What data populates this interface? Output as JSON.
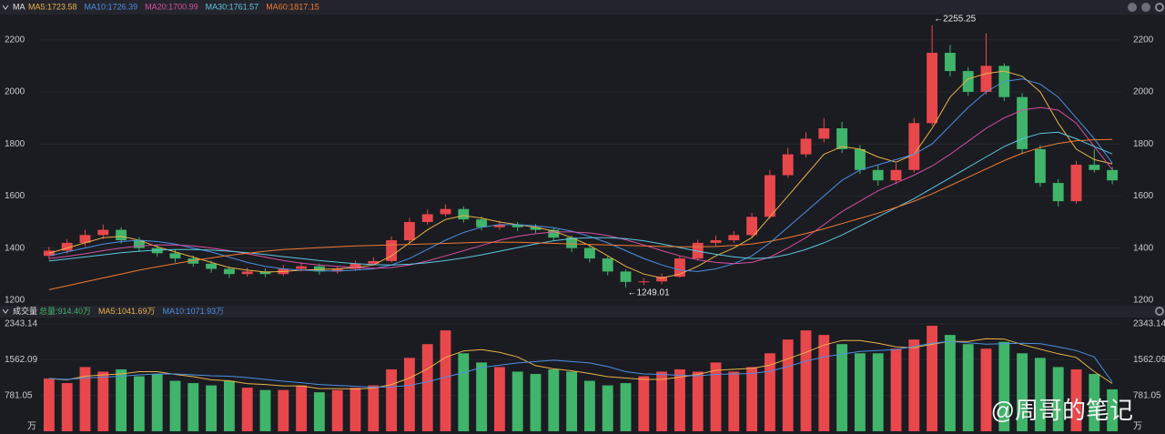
{
  "chart_data": [
    {
      "type": "candlestick",
      "title": "MA",
      "ylim": [
        1182,
        2290
      ],
      "yticks": [
        1200,
        1400,
        1600,
        1800,
        2000,
        2200
      ],
      "up_color": "#e8474c",
      "down_color": "#3fb46a",
      "candles": [
        [
          1370,
          1405,
          1355,
          1390
        ],
        [
          1390,
          1435,
          1378,
          1420
        ],
        [
          1420,
          1470,
          1405,
          1450
        ],
        [
          1450,
          1490,
          1435,
          1470
        ],
        [
          1470,
          1480,
          1418,
          1430
        ],
        [
          1430,
          1442,
          1385,
          1400
        ],
        [
          1400,
          1415,
          1368,
          1380
        ],
        [
          1380,
          1392,
          1345,
          1360
        ],
        [
          1360,
          1372,
          1328,
          1340
        ],
        [
          1340,
          1352,
          1305,
          1320
        ],
        [
          1320,
          1330,
          1285,
          1300
        ],
        [
          1300,
          1325,
          1290,
          1310
        ],
        [
          1310,
          1322,
          1288,
          1300
        ],
        [
          1300,
          1335,
          1292,
          1320
        ],
        [
          1320,
          1345,
          1310,
          1330
        ],
        [
          1330,
          1340,
          1298,
          1310
        ],
        [
          1310,
          1332,
          1302,
          1320
        ],
        [
          1320,
          1352,
          1312,
          1340
        ],
        [
          1340,
          1365,
          1332,
          1350
        ],
        [
          1350,
          1445,
          1345,
          1430
        ],
        [
          1430,
          1515,
          1422,
          1500
        ],
        [
          1500,
          1548,
          1490,
          1530
        ],
        [
          1530,
          1568,
          1520,
          1550
        ],
        [
          1550,
          1560,
          1498,
          1510
        ],
        [
          1510,
          1522,
          1468,
          1480
        ],
        [
          1480,
          1505,
          1470,
          1490
        ],
        [
          1490,
          1500,
          1465,
          1480
        ],
        [
          1480,
          1492,
          1458,
          1470
        ],
        [
          1470,
          1478,
          1428,
          1440
        ],
        [
          1440,
          1448,
          1385,
          1400
        ],
        [
          1400,
          1410,
          1345,
          1360
        ],
        [
          1360,
          1368,
          1295,
          1310
        ],
        [
          1310,
          1318,
          1249.01,
          1270
        ],
        [
          1270,
          1285,
          1258,
          1272
        ],
        [
          1272,
          1302,
          1262,
          1290
        ],
        [
          1290,
          1372,
          1285,
          1360
        ],
        [
          1360,
          1432,
          1352,
          1420
        ],
        [
          1420,
          1448,
          1408,
          1430
        ],
        [
          1430,
          1465,
          1420,
          1450
        ],
        [
          1450,
          1535,
          1442,
          1520
        ],
        [
          1520,
          1700,
          1512,
          1680
        ],
        [
          1680,
          1785,
          1670,
          1760
        ],
        [
          1760,
          1845,
          1748,
          1820
        ],
        [
          1820,
          1900,
          1805,
          1860
        ],
        [
          1860,
          1885,
          1765,
          1780
        ],
        [
          1780,
          1795,
          1685,
          1700
        ],
        [
          1700,
          1718,
          1640,
          1660
        ],
        [
          1660,
          1725,
          1645,
          1700
        ],
        [
          1700,
          1900,
          1690,
          1880
        ],
        [
          1880,
          2255.25,
          1870,
          2150
        ],
        [
          2150,
          2180,
          2060,
          2080
        ],
        [
          2080,
          2095,
          1985,
          2000
        ],
        [
          2000,
          2225,
          1990,
          2100
        ],
        [
          2100,
          2110,
          1965,
          1980
        ],
        [
          1980,
          1995,
          1760,
          1780
        ],
        [
          1780,
          1795,
          1635,
          1650
        ],
        [
          1650,
          1665,
          1560,
          1580
        ],
        [
          1580,
          1735,
          1570,
          1720
        ],
        [
          1720,
          1780,
          1690,
          1700
        ],
        [
          1700,
          1712,
          1645,
          1660
        ]
      ],
      "series": [
        {
          "name": "MA5:1723.58",
          "color": "#e9b24a",
          "values": [
            1380,
            1400,
            1420,
            1440,
            1445,
            1430,
            1405,
            1385,
            1365,
            1345,
            1325,
            1315,
            1308,
            1310,
            1315,
            1318,
            1320,
            1325,
            1335,
            1370,
            1420,
            1470,
            1510,
            1525,
            1515,
            1500,
            1490,
            1480,
            1465,
            1440,
            1410,
            1370,
            1330,
            1300,
            1285,
            1300,
            1330,
            1370,
            1400,
            1440,
            1520,
            1600,
            1680,
            1760,
            1790,
            1780,
            1750,
            1730,
            1760,
            1860,
            1980,
            2050,
            2070,
            2080,
            2060,
            2000,
            1880,
            1780,
            1740,
            1723.58
          ]
        },
        {
          "name": "MA10:1726.39",
          "color": "#4c8fe3",
          "values": [
            1370,
            1385,
            1400,
            1415,
            1425,
            1430,
            1425,
            1415,
            1400,
            1385,
            1365,
            1345,
            1330,
            1320,
            1315,
            1312,
            1312,
            1315,
            1320,
            1335,
            1360,
            1395,
            1430,
            1460,
            1480,
            1490,
            1490,
            1485,
            1478,
            1465,
            1445,
            1420,
            1390,
            1360,
            1335,
            1315,
            1310,
            1320,
            1340,
            1370,
            1420,
            1480,
            1540,
            1600,
            1660,
            1700,
            1720,
            1740,
            1760,
            1800,
            1870,
            1940,
            2000,
            2040,
            2050,
            2030,
            1980,
            1900,
            1820,
            1726.39
          ]
        },
        {
          "name": "MA20:1700.99",
          "color": "#d44fa3",
          "values": [
            1360,
            1368,
            1378,
            1390,
            1400,
            1408,
            1412,
            1412,
            1408,
            1400,
            1390,
            1378,
            1365,
            1352,
            1342,
            1335,
            1330,
            1325,
            1322,
            1325,
            1335,
            1350,
            1370,
            1390,
            1410,
            1430,
            1445,
            1455,
            1462,
            1462,
            1458,
            1448,
            1432,
            1412,
            1390,
            1370,
            1355,
            1345,
            1340,
            1345,
            1365,
            1400,
            1440,
            1490,
            1540,
            1580,
            1620,
            1650,
            1680,
            1715,
            1760,
            1810,
            1860,
            1900,
            1930,
            1940,
            1930,
            1880,
            1790,
            1700.99
          ]
        },
        {
          "name": "MA30:1761.57",
          "color": "#5cc6e0",
          "values": [
            1350,
            1358,
            1366,
            1374,
            1382,
            1388,
            1392,
            1394,
            1394,
            1392,
            1388,
            1382,
            1375,
            1367,
            1360,
            1352,
            1346,
            1340,
            1336,
            1335,
            1338,
            1344,
            1352,
            1362,
            1374,
            1388,
            1402,
            1416,
            1428,
            1436,
            1440,
            1440,
            1436,
            1428,
            1416,
            1402,
            1388,
            1376,
            1366,
            1360,
            1362,
            1375,
            1395,
            1420,
            1450,
            1485,
            1520,
            1555,
            1590,
            1630,
            1670,
            1710,
            1750,
            1790,
            1820,
            1840,
            1845,
            1820,
            1790,
            1761.57
          ]
        },
        {
          "name": "MA60:1817.15",
          "color": "#ee7a34",
          "values": [
            1240,
            1255,
            1270,
            1285,
            1300,
            1315,
            1328,
            1340,
            1352,
            1362,
            1372,
            1380,
            1388,
            1394,
            1398,
            1402,
            1405,
            1408,
            1410,
            1412,
            1414,
            1416,
            1418,
            1420,
            1422,
            1422,
            1422,
            1420,
            1418,
            1416,
            1414,
            1412,
            1410,
            1408,
            1406,
            1405,
            1405,
            1406,
            1410,
            1416,
            1426,
            1440,
            1456,
            1474,
            1494,
            1514,
            1534,
            1556,
            1580,
            1608,
            1640,
            1672,
            1704,
            1736,
            1764,
            1786,
            1802,
            1812,
            1816,
            1817.15
          ]
        }
      ],
      "annotations": [
        {
          "label": "←2255.25",
          "value": 2255.25
        },
        {
          "label": "←1249.01",
          "value": 1249.01
        }
      ]
    },
    {
      "type": "bar",
      "title": "成交量",
      "unit": "万",
      "ylim": [
        0,
        2420
      ],
      "yticks": [
        781.05,
        1562.09,
        2343.14
      ],
      "series": [
        {
          "name": "总量:914.40万",
          "color": "#3fb46a",
          "values": [
            1150,
            1050,
            1400,
            1300,
            1350,
            1200,
            1250,
            1100,
            1050,
            1000,
            1100,
            950,
            900,
            900,
            1000,
            850,
            900,
            950,
            1000,
            1350,
            1600,
            1900,
            2200,
            1700,
            1500,
            1400,
            1300,
            1250,
            1350,
            1300,
            1100,
            1000,
            1050,
            1200,
            1300,
            1350,
            1300,
            1500,
            1300,
            1400,
            1700,
            2000,
            2200,
            2100,
            1900,
            1700,
            1700,
            1800,
            2000,
            2300,
            2100,
            1900,
            1800,
            1950,
            1700,
            1600,
            1400,
            1350,
            1250,
            914.4
          ]
        },
        {
          "name": "MA5:1041.69万",
          "color": "#e9b24a",
          "values": [
            1150,
            1120,
            1200,
            1230,
            1250,
            1300,
            1300,
            1240,
            1190,
            1120,
            1100,
            1040,
            1020,
            990,
            990,
            930,
            930,
            920,
            940,
            1020,
            1160,
            1360,
            1610,
            1750,
            1780,
            1720,
            1620,
            1430,
            1360,
            1320,
            1260,
            1190,
            1160,
            1130,
            1130,
            1180,
            1240,
            1330,
            1350,
            1370,
            1440,
            1580,
            1720,
            1880,
            1980,
            1980,
            1920,
            1840,
            1820,
            1900,
            1960,
            1960,
            2020,
            2010,
            1890,
            1790,
            1690,
            1610,
            1300,
            1041.69
          ]
        },
        {
          "name": "MA10:1071.93万",
          "color": "#4c8fe3",
          "values": [
            1150,
            1130,
            1160,
            1180,
            1200,
            1230,
            1250,
            1250,
            1230,
            1210,
            1200,
            1170,
            1130,
            1090,
            1060,
            1020,
            1000,
            980,
            960,
            970,
            1000,
            1080,
            1180,
            1280,
            1390,
            1440,
            1490,
            1520,
            1550,
            1520,
            1490,
            1410,
            1300,
            1250,
            1240,
            1220,
            1210,
            1240,
            1250,
            1260,
            1310,
            1410,
            1530,
            1620,
            1680,
            1740,
            1760,
            1780,
            1850,
            1920,
            1960,
            1930,
            1900,
            1910,
            1920,
            1910,
            1840,
            1760,
            1620,
            1071.93
          ]
        }
      ]
    }
  ],
  "watermark": "@周哥的笔记"
}
